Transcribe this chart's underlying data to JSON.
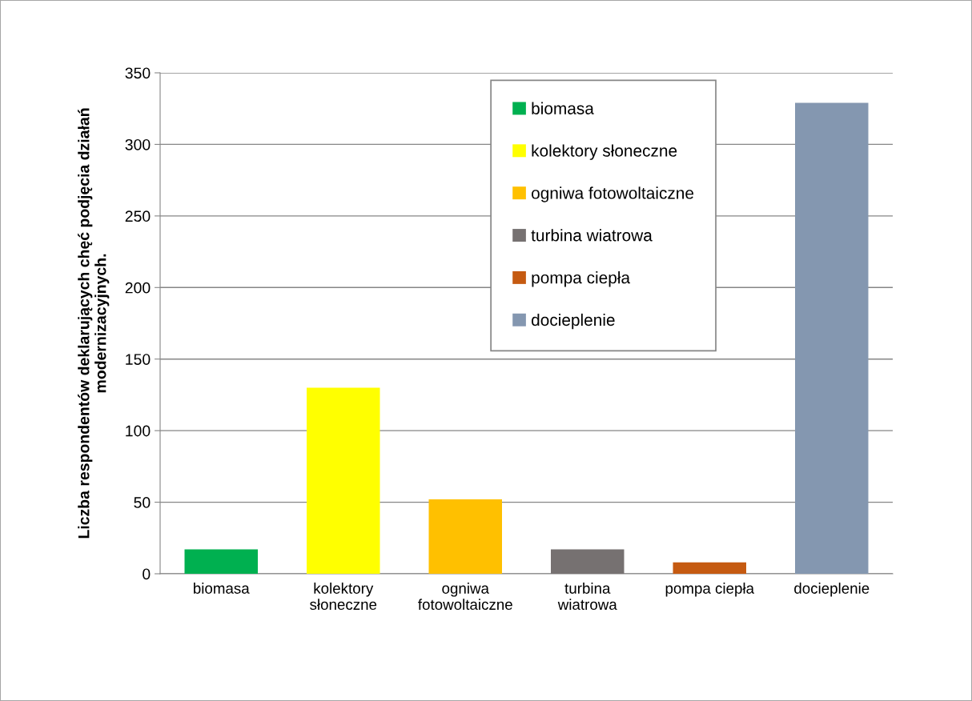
{
  "chart_data": {
    "type": "bar",
    "stacked": true,
    "categories": [
      "biomasa",
      "kolektory\nsłoneczne",
      "ogniwa\nfotowoltaiczne",
      "turbina\nwiatrowa",
      "pompa ciepła",
      "docieplenie"
    ],
    "series": [
      {
        "name": "biomasa",
        "color": "#00b050",
        "values": [
          17,
          null,
          null,
          null,
          null,
          null
        ]
      },
      {
        "name": "kolektory słoneczne",
        "color": "#ffff00",
        "values": [
          null,
          130,
          null,
          null,
          null,
          null
        ]
      },
      {
        "name": "ogniwa fotowoltaiczne",
        "color": "#ffc000",
        "values": [
          null,
          null,
          52,
          null,
          null,
          null
        ]
      },
      {
        "name": "turbina wiatrowa",
        "color": "#767171",
        "values": [
          null,
          null,
          null,
          17,
          null,
          null
        ]
      },
      {
        "name": "pompa ciepła",
        "color": "#c55a11",
        "values": [
          null,
          null,
          null,
          null,
          8,
          null
        ]
      },
      {
        "name": "docieplenie",
        "color": "#8497b0",
        "values": [
          null,
          null,
          null,
          null,
          null,
          329
        ]
      }
    ],
    "ylabel": "Liczba respondentów deklarujących chęć podjęcia działań\nmodernizacyjnych.",
    "ylim": [
      0,
      350
    ],
    "yticks": [
      0,
      50,
      100,
      150,
      200,
      250,
      300,
      350
    ],
    "grid": "y",
    "legend": "top"
  }
}
